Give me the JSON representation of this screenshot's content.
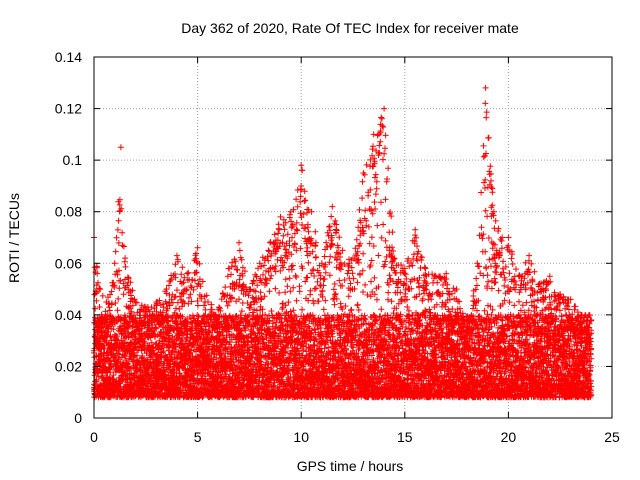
{
  "chart_data": {
    "type": "scatter",
    "title": "Day 362 of 2020, Rate Of TEC Index for receiver mate",
    "xlabel": "GPS time / hours",
    "ylabel": "ROTI / TECUs",
    "xlim": [
      0,
      25
    ],
    "ylim": [
      0,
      0.14
    ],
    "xticks": [
      0,
      5,
      10,
      15,
      20,
      25
    ],
    "xtick_labels": [
      "0",
      "5",
      "10",
      "15",
      "20",
      "25"
    ],
    "yticks": [
      0,
      0.02,
      0.04,
      0.06,
      0.08,
      0.1,
      0.12,
      0.14
    ],
    "ytick_labels": [
      "0",
      "0.02",
      "0.04",
      "0.06",
      "0.08",
      "0.1",
      "0.12",
      "0.14"
    ],
    "grid": true,
    "marker": "+",
    "colors": {
      "series": "#ff0000",
      "axis": "#000000",
      "grid": "#a0a0a0"
    },
    "series": [
      {
        "name": "ROTI",
        "x_range": [
          0,
          24
        ],
        "sample_interval_hours": 0.0083,
        "baseline_min": 0.005,
        "typical_range": [
          0.008,
          0.04
        ],
        "envelope": [
          [
            0.0,
            0.07
          ],
          [
            0.3,
            0.05
          ],
          [
            0.6,
            0.045
          ],
          [
            1.0,
            0.06
          ],
          [
            1.3,
            0.105
          ],
          [
            1.5,
            0.062
          ],
          [
            2.0,
            0.045
          ],
          [
            2.5,
            0.043
          ],
          [
            3.0,
            0.045
          ],
          [
            3.5,
            0.05
          ],
          [
            4.0,
            0.063
          ],
          [
            4.5,
            0.056
          ],
          [
            5.0,
            0.066
          ],
          [
            5.5,
            0.045
          ],
          [
            6.0,
            0.042
          ],
          [
            6.5,
            0.058
          ],
          [
            7.0,
            0.068
          ],
          [
            7.5,
            0.05
          ],
          [
            8.0,
            0.06
          ],
          [
            8.5,
            0.068
          ],
          [
            9.0,
            0.078
          ],
          [
            9.5,
            0.08
          ],
          [
            10.0,
            0.098
          ],
          [
            10.5,
            0.08
          ],
          [
            11.0,
            0.06
          ],
          [
            11.5,
            0.082
          ],
          [
            12.0,
            0.065
          ],
          [
            12.5,
            0.062
          ],
          [
            13.0,
            0.095
          ],
          [
            13.5,
            0.11
          ],
          [
            14.0,
            0.12
          ],
          [
            14.5,
            0.062
          ],
          [
            15.0,
            0.058
          ],
          [
            15.5,
            0.073
          ],
          [
            16.0,
            0.058
          ],
          [
            16.5,
            0.055
          ],
          [
            17.0,
            0.056
          ],
          [
            17.5,
            0.05
          ],
          [
            18.0,
            0.035
          ],
          [
            18.5,
            0.06
          ],
          [
            18.9,
            0.128
          ],
          [
            19.3,
            0.08
          ],
          [
            19.7,
            0.07
          ],
          [
            20.0,
            0.07
          ],
          [
            20.5,
            0.055
          ],
          [
            21.0,
            0.063
          ],
          [
            21.5,
            0.052
          ],
          [
            22.0,
            0.055
          ],
          [
            22.5,
            0.048
          ],
          [
            23.0,
            0.046
          ],
          [
            23.5,
            0.04
          ],
          [
            24.0,
            0.038
          ]
        ]
      }
    ]
  }
}
